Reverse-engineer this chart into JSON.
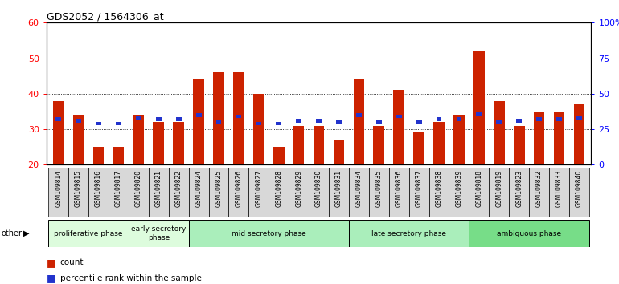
{
  "title": "GDS2052 / 1564306_at",
  "samples": [
    "GSM109814",
    "GSM109815",
    "GSM109816",
    "GSM109817",
    "GSM109820",
    "GSM109821",
    "GSM109822",
    "GSM109824",
    "GSM109825",
    "GSM109826",
    "GSM109827",
    "GSM109828",
    "GSM109829",
    "GSM109830",
    "GSM109831",
    "GSM109834",
    "GSM109835",
    "GSM109836",
    "GSM109837",
    "GSM109838",
    "GSM109839",
    "GSM109818",
    "GSM109819",
    "GSM109823",
    "GSM109832",
    "GSM109833",
    "GSM109840"
  ],
  "count_values": [
    38,
    34,
    25,
    25,
    34,
    32,
    32,
    44,
    46,
    46,
    40,
    25,
    31,
    31,
    27,
    44,
    31,
    41,
    29,
    32,
    34,
    52,
    38,
    31,
    35,
    35,
    37
  ],
  "percentile_values": [
    32,
    31,
    29,
    29,
    33,
    32,
    32,
    35,
    30,
    34,
    29,
    29,
    31,
    31,
    30,
    35,
    30,
    34,
    30,
    32,
    32,
    36,
    30,
    31,
    32,
    32,
    33
  ],
  "ylim_left": [
    20,
    60
  ],
  "yticks_left": [
    20,
    30,
    40,
    50,
    60
  ],
  "ylim_right": [
    0,
    100
  ],
  "yticks_right": [
    0,
    25,
    50,
    75,
    100
  ],
  "yticklabels_right": [
    "0",
    "25",
    "50",
    "75",
    "100%"
  ],
  "bar_color": "#cc2200",
  "percentile_color": "#2233cc",
  "bar_width": 0.55,
  "phase_groups": [
    {
      "label": "proliferative phase",
      "start": 0,
      "end": 4,
      "color": "#ddfcdd"
    },
    {
      "label": "early secretory\nphase",
      "start": 4,
      "end": 7,
      "color": "#ddfcdd"
    },
    {
      "label": "mid secretory phase",
      "start": 7,
      "end": 15,
      "color": "#aaeebb"
    },
    {
      "label": "late secretory phase",
      "start": 15,
      "end": 21,
      "color": "#aaeebb"
    },
    {
      "label": "ambiguous phase",
      "start": 21,
      "end": 27,
      "color": "#77dd88"
    }
  ],
  "legend_count_label": "count",
  "legend_percentile_label": "percentile rank within the sample",
  "other_label": "other",
  "sample_bg_color": "#d8d8d8",
  "plot_bg_color": "#ffffff"
}
